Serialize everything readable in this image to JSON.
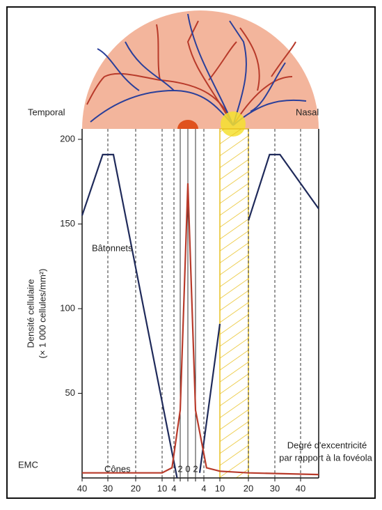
{
  "chart_data": {
    "type": "line",
    "ylabel": [
      "Densité cellulaire",
      "(× 1 000 cellules/mm²)"
    ],
    "xlabel": [
      "Degré d'excentricité",
      "par rapport à la fovéola"
    ],
    "side_labels": [
      "Temporal",
      "Nasal"
    ],
    "logo": "EMC",
    "xlim": [
      -40,
      45
    ],
    "xticks": [
      {
        "value": -40,
        "label": "40"
      },
      {
        "value": -30,
        "label": "30"
      },
      {
        "value": -20,
        "label": "20"
      },
      {
        "value": -10,
        "label": "10"
      },
      {
        "value": -4,
        "label": "4"
      },
      {
        "value": -2,
        "label": "2"
      },
      0,
      2,
      4,
      10,
      20,
      30,
      40
    ],
    "ylim": [
      0,
      205
    ],
    "yticks": [
      50,
      100,
      150,
      200
    ],
    "series": [
      {
        "name": "Bâtonnets",
        "color": "#1f2a5a",
        "x": [
          -40,
          -32,
          -28,
          -3,
          0,
          3,
          10,
          15,
          20,
          28,
          32,
          45
        ],
        "values": [
          155,
          191,
          191,
          0,
          null,
          3,
          91,
          null,
          152,
          191,
          191,
          159
        ]
      },
      {
        "name": "Cônes",
        "color": "#b83a2a",
        "x": [
          -40,
          -10,
          -5,
          -2,
          0,
          2,
          5,
          10,
          20,
          45
        ],
        "values": [
          3,
          3,
          6,
          40,
          174,
          40,
          6,
          4,
          3,
          2
        ]
      }
    ]
  }
}
